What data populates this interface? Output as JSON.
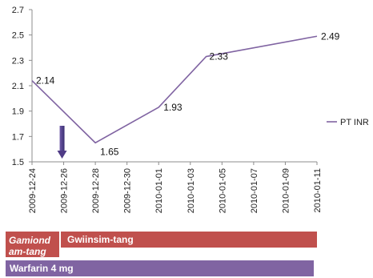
{
  "chart_data": {
    "type": "line",
    "x": [
      "2009-12-24",
      "2009-12-26",
      "2009-12-28",
      "2009-12-30",
      "2010-01-01",
      "2010-01-03",
      "2010-01-05",
      "2010-01-07",
      "2010-01-09",
      "2010-01-11"
    ],
    "series": [
      {
        "name": "PT INR",
        "points": [
          {
            "x": "2009-12-24",
            "y": 2.14
          },
          {
            "x": "2009-12-28",
            "y": 1.65
          },
          {
            "x": "2010-01-01",
            "y": 1.93
          },
          {
            "x": "2010-01-04",
            "y": 2.33
          },
          {
            "x": "2010-01-11",
            "y": 2.49
          }
        ],
        "labels": [
          "2.14",
          "1.65",
          "1.93",
          "2.33",
          "2.49"
        ],
        "color": "#8064a2"
      }
    ],
    "ylim": [
      1.5,
      2.7
    ],
    "yticks": [
      1.5,
      1.7,
      1.9,
      2.1,
      2.3,
      2.5,
      2.7
    ],
    "ytick_labels": [
      "1.5",
      "1.7",
      "1.9",
      "2.1",
      "2.3",
      "2.5",
      "2.7"
    ],
    "grid": false,
    "legend": "right",
    "arrow_marker": {
      "x": "2009-12-26",
      "color": "#4f3b86"
    }
  },
  "timeline": {
    "red_bar": {
      "segment_a_line1": "Gamiond",
      "segment_a_line2": "am-tang",
      "segment_b": "Gwiinsim-tang",
      "color": "#c0504d"
    },
    "purple_bar": {
      "label": "Warfarin 4 mg",
      "color": "#8064a2"
    }
  }
}
